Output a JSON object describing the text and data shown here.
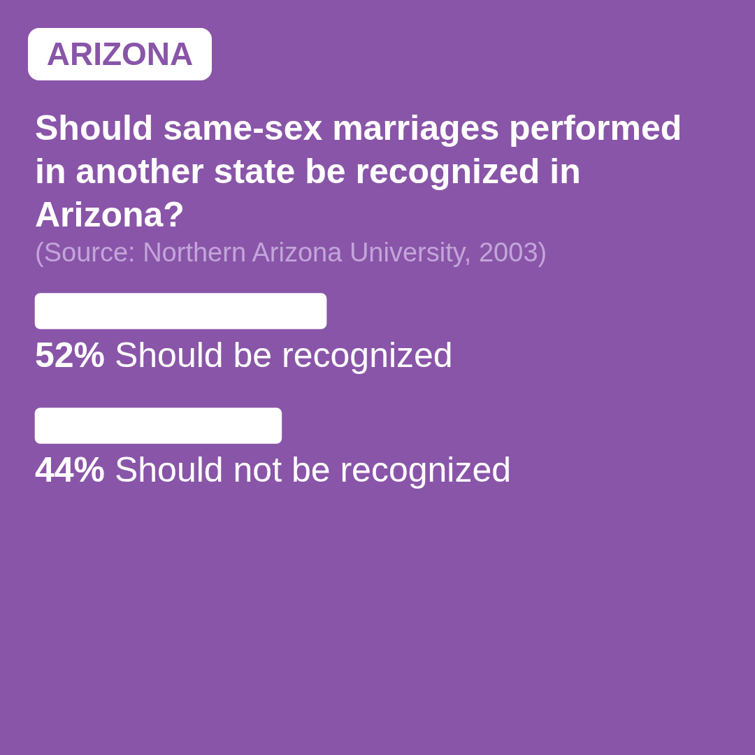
{
  "chart_data": {
    "type": "bar",
    "orientation": "horizontal",
    "title": "Should same-sex marriages performed in another state be recognized in Arizona?",
    "annotations": [
      "ARIZONA",
      "(Source: Northern Arizona University, 2003)"
    ],
    "categories": [
      "Should be recognized",
      "Should not be recognized"
    ],
    "values": [
      52,
      44
    ],
    "value_labels": [
      "52%",
      "44%"
    ],
    "color": "#ffffff",
    "grid": false,
    "legend": false,
    "tick_labels": "y"
  }
}
